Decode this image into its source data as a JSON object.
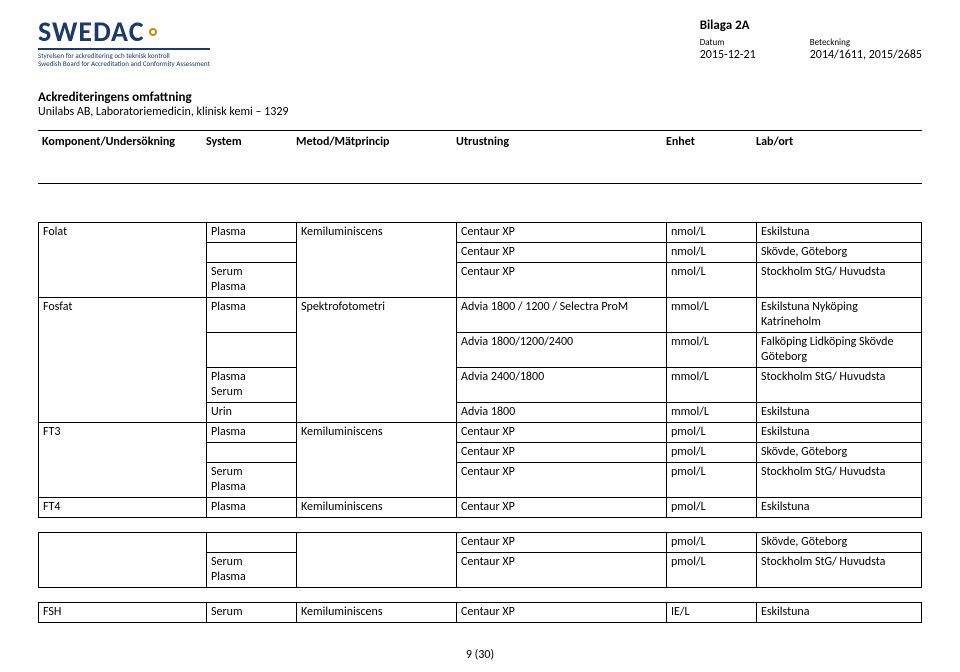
{
  "logo": {
    "word": "SWEDAC",
    "sub1": "Styrelsen för ackreditering och teknisk kontroll",
    "sub2": "Swedish Board for Accreditation and Conformity Assessment"
  },
  "topright": {
    "bilaga": "Bilaga 2A",
    "datum_label": "Datum",
    "datum_value": "2015-12-21",
    "betk_label": "Beteckning",
    "betk_value": "2014/1611, 2015/2685"
  },
  "ack": {
    "title": "Ackrediteringens omfattning",
    "line": "Unilabs AB, Laboratoriemedicin, klinisk kemi – 1329"
  },
  "header": {
    "komp": "Komponent/Undersökning",
    "sys": "System",
    "met": "Metod/Mätprincip",
    "utr": "Utrustning",
    "enh": "Enhet",
    "lab": "Lab/ort"
  },
  "group1": {
    "r1": {
      "komp": "Folat",
      "sys": "Plasma",
      "met": "Kemiluminiscens",
      "utr": "Centaur XP",
      "enh": "nmol/L",
      "lab": "Eskilstuna"
    },
    "r2": {
      "utr": "Centaur XP",
      "enh": "nmol/L",
      "lab": "Skövde, Göteborg"
    },
    "r3": {
      "sys": "Serum\nPlasma",
      "utr": "Centaur XP",
      "enh": "nmol/L",
      "lab": "Stockholm StG/ Huvudsta"
    },
    "r4": {
      "komp": "Fosfat",
      "sys": "Plasma",
      "met": "Spektrofotometri",
      "utr": "Advia 1800 / 1200 / Selectra ProM",
      "enh": "mmol/L",
      "lab": "Eskilstuna Nyköping\nKatrineholm"
    },
    "r5": {
      "utr": "Advia 1800/1200/2400",
      "enh": "mmol/L",
      "lab": "Falköping Lidköping Skövde\nGöteborg"
    },
    "r6": {
      "sys": "Plasma\nSerum",
      "utr": "Advia 2400/1800",
      "enh": "mmol/L",
      "lab": "Stockholm StG/ Huvudsta"
    },
    "r7": {
      "sys": "Urin",
      "utr": "Advia 1800",
      "enh": "mmol/L",
      "lab": "Eskilstuna"
    },
    "r8": {
      "komp": "FT3",
      "sys": "Plasma",
      "met": "Kemiluminiscens",
      "utr": "Centaur XP",
      "enh": "pmol/L",
      "lab": "Eskilstuna"
    },
    "r9": {
      "utr": "Centaur XP",
      "enh": "pmol/L",
      "lab": "Skövde, Göteborg"
    },
    "r10": {
      "sys": "Serum\nPlasma",
      "utr": "Centaur XP",
      "enh": "pmol/L",
      "lab": "Stockholm StG/ Huvudsta"
    },
    "r11": {
      "komp": "FT4",
      "sys": "Plasma",
      "met": "Kemiluminiscens",
      "utr": "Centaur XP",
      "enh": "pmol/L",
      "lab": "Eskilstuna"
    }
  },
  "group2": {
    "r1": {
      "utr": "Centaur XP",
      "enh": "pmol/L",
      "lab": "Skövde, Göteborg"
    },
    "r2": {
      "sys": "Serum\nPlasma",
      "utr": "Centaur XP",
      "enh": "pmol/L",
      "lab": "Stockholm StG/ Huvudsta"
    }
  },
  "group3": {
    "r1": {
      "komp": "FSH",
      "sys": "Serum",
      "met": "Kemiluminiscens",
      "utr": "Centaur XP",
      "enh": "IE/L",
      "lab": "Eskilstuna"
    }
  },
  "page": "9 (30)"
}
